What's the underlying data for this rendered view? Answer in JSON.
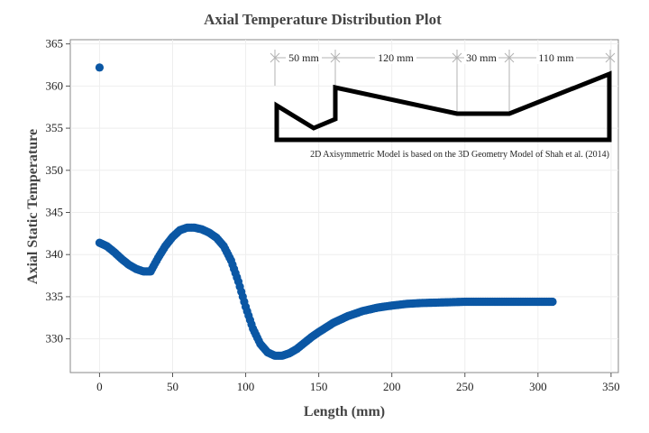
{
  "chart_data": {
    "type": "scatter",
    "title": "Axial Temperature Distribution Plot",
    "xlabel": "Length (mm)",
    "ylabel": "Axial Static Temperature",
    "xlim": [
      -20,
      355
    ],
    "ylim": [
      326,
      365.5
    ],
    "x_ticks": [
      0,
      50,
      100,
      150,
      200,
      250,
      300,
      350
    ],
    "y_ticks": [
      330,
      335,
      340,
      345,
      350,
      355,
      360,
      365
    ],
    "grid": true,
    "marker_color": "#0b57a4",
    "outlier_point": {
      "x": 0,
      "y": 362.2
    },
    "curve_points": [
      [
        0,
        341.4
      ],
      [
        5,
        341.0
      ],
      [
        10,
        340.3
      ],
      [
        15,
        339.5
      ],
      [
        20,
        338.8
      ],
      [
        25,
        338.3
      ],
      [
        30,
        338.0
      ],
      [
        35,
        338.0
      ],
      [
        40,
        339.6
      ],
      [
        45,
        341.0
      ],
      [
        50,
        342.1
      ],
      [
        55,
        342.9
      ],
      [
        60,
        343.2
      ],
      [
        65,
        343.2
      ],
      [
        70,
        343.0
      ],
      [
        75,
        342.6
      ],
      [
        80,
        342.0
      ],
      [
        85,
        341.0
      ],
      [
        90,
        339.3
      ],
      [
        95,
        336.8
      ],
      [
        100,
        333.8
      ],
      [
        105,
        331.2
      ],
      [
        110,
        329.4
      ],
      [
        115,
        328.4
      ],
      [
        120,
        328.0
      ],
      [
        125,
        328.0
      ],
      [
        130,
        328.3
      ],
      [
        135,
        328.8
      ],
      [
        140,
        329.5
      ],
      [
        145,
        330.2
      ],
      [
        150,
        330.8
      ],
      [
        160,
        331.9
      ],
      [
        170,
        332.7
      ],
      [
        180,
        333.3
      ],
      [
        190,
        333.7
      ],
      [
        200,
        333.95
      ],
      [
        210,
        334.15
      ],
      [
        220,
        334.25
      ],
      [
        230,
        334.3
      ],
      [
        240,
        334.35
      ],
      [
        250,
        334.4
      ],
      [
        260,
        334.4
      ],
      [
        280,
        334.4
      ],
      [
        300,
        334.4
      ],
      [
        310,
        334.4
      ]
    ],
    "inset": {
      "segments": [
        "50 mm",
        "120 mm",
        "30 mm",
        "110 mm"
      ],
      "note": "2D Axisymmetric Model is based on the 3D Geometry Model of Shah et al. (2014)"
    }
  }
}
